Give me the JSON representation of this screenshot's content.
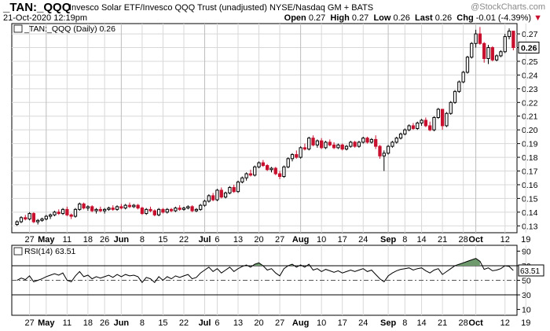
{
  "header": {
    "symbol": "_TAN:_QQQ",
    "title": "Invesco Solar ETF/Invesco QQQ Trust (unadjusted)",
    "exchange": "NYSE/Nasdaq GM + BATS",
    "watermark": "@StockCharts.com",
    "date": "21-Oct-2020 12:19pm",
    "open_label": "Open",
    "open": "0.27",
    "high_label": "High",
    "high": "0.27",
    "low_label": "Low",
    "low": "0.26",
    "last_label": "Last",
    "last": "0.26",
    "chg_label": "Chg",
    "chg": "-0.01 (-4.39%)",
    "chg_arrow": "▼"
  },
  "colors": {
    "up": "#000000",
    "down": "#c8102e",
    "rsi_fill": "#6e9a6e",
    "grid": "#d8d8d8"
  },
  "chart_data": [
    {
      "type": "candlestick",
      "legend": "_TAN:_QQQ (Daily) 0.26",
      "last_value_label": "0.26",
      "y_ticks": [
        "0.27",
        "0.26",
        "0.25",
        "0.24",
        "0.23",
        "0.22",
        "0.21",
        "0.20",
        "0.19",
        "0.18",
        "0.17",
        "0.16",
        "0.15",
        "0.14",
        "0.13"
      ],
      "ylim": [
        0.125,
        0.2775
      ],
      "x_labels": [
        {
          "label": "27",
          "i": 3
        },
        {
          "label": "May",
          "i": 7,
          "bold": true
        },
        {
          "label": "11",
          "i": 12
        },
        {
          "label": "18",
          "i": 17
        },
        {
          "label": "26",
          "i": 21
        },
        {
          "label": "Jun",
          "i": 25,
          "bold": true
        },
        {
          "label": "8",
          "i": 30
        },
        {
          "label": "15",
          "i": 35
        },
        {
          "label": "22",
          "i": 40
        },
        {
          "label": "Jul",
          "i": 45,
          "bold": true
        },
        {
          "label": "6",
          "i": 48
        },
        {
          "label": "13",
          "i": 53
        },
        {
          "label": "20",
          "i": 58
        },
        {
          "label": "27",
          "i": 63
        },
        {
          "label": "Aug",
          "i": 68,
          "bold": true
        },
        {
          "label": "10",
          "i": 73
        },
        {
          "label": "17",
          "i": 78
        },
        {
          "label": "24",
          "i": 83
        },
        {
          "label": "Sep",
          "i": 89,
          "bold": true
        },
        {
          "label": "8",
          "i": 93
        },
        {
          "label": "14",
          "i": 97
        },
        {
          "label": "21",
          "i": 102
        },
        {
          "label": "28",
          "i": 107
        },
        {
          "label": "Oct",
          "i": 110,
          "bold": true
        },
        {
          "label": "12",
          "i": 117
        },
        {
          "label": "19",
          "i": 122
        }
      ],
      "ohlc": [
        [
          0.131,
          0.134,
          0.13,
          0.133
        ],
        [
          0.133,
          0.137,
          0.132,
          0.136
        ],
        [
          0.136,
          0.138,
          0.134,
          0.135
        ],
        [
          0.135,
          0.14,
          0.134,
          0.139
        ],
        [
          0.139,
          0.14,
          0.132,
          0.133
        ],
        [
          0.133,
          0.135,
          0.131,
          0.134
        ],
        [
          0.134,
          0.136,
          0.133,
          0.135
        ],
        [
          0.135,
          0.138,
          0.134,
          0.137
        ],
        [
          0.137,
          0.139,
          0.135,
          0.138
        ],
        [
          0.138,
          0.141,
          0.137,
          0.14
        ],
        [
          0.14,
          0.142,
          0.138,
          0.139
        ],
        [
          0.139,
          0.143,
          0.138,
          0.142
        ],
        [
          0.142,
          0.144,
          0.137,
          0.138
        ],
        [
          0.138,
          0.139,
          0.135,
          0.137
        ],
        [
          0.137,
          0.143,
          0.136,
          0.142
        ],
        [
          0.142,
          0.147,
          0.141,
          0.146
        ],
        [
          0.146,
          0.147,
          0.142,
          0.143
        ],
        [
          0.143,
          0.145,
          0.141,
          0.144
        ],
        [
          0.144,
          0.145,
          0.14,
          0.141
        ],
        [
          0.141,
          0.143,
          0.139,
          0.142
        ],
        [
          0.142,
          0.144,
          0.14,
          0.141
        ],
        [
          0.141,
          0.143,
          0.139,
          0.142
        ],
        [
          0.142,
          0.144,
          0.141,
          0.143
        ],
        [
          0.143,
          0.145,
          0.141,
          0.142
        ],
        [
          0.142,
          0.145,
          0.141,
          0.144
        ],
        [
          0.144,
          0.146,
          0.142,
          0.143
        ],
        [
          0.143,
          0.146,
          0.142,
          0.145
        ],
        [
          0.145,
          0.147,
          0.143,
          0.144
        ],
        [
          0.144,
          0.146,
          0.143,
          0.145
        ],
        [
          0.145,
          0.146,
          0.142,
          0.143
        ],
        [
          0.143,
          0.144,
          0.138,
          0.139
        ],
        [
          0.139,
          0.143,
          0.138,
          0.142
        ],
        [
          0.142,
          0.144,
          0.14,
          0.141
        ],
        [
          0.141,
          0.142,
          0.137,
          0.138
        ],
        [
          0.138,
          0.143,
          0.137,
          0.142
        ],
        [
          0.142,
          0.143,
          0.139,
          0.14
        ],
        [
          0.14,
          0.143,
          0.139,
          0.142
        ],
        [
          0.142,
          0.143,
          0.14,
          0.141
        ],
        [
          0.141,
          0.144,
          0.14,
          0.143
        ],
        [
          0.143,
          0.145,
          0.141,
          0.142
        ],
        [
          0.142,
          0.144,
          0.141,
          0.143
        ],
        [
          0.143,
          0.145,
          0.142,
          0.144
        ],
        [
          0.144,
          0.145,
          0.14,
          0.141
        ],
        [
          0.141,
          0.143,
          0.14,
          0.142
        ],
        [
          0.142,
          0.146,
          0.141,
          0.145
        ],
        [
          0.145,
          0.149,
          0.144,
          0.148
        ],
        [
          0.148,
          0.153,
          0.147,
          0.152
        ],
        [
          0.152,
          0.154,
          0.148,
          0.149
        ],
        [
          0.149,
          0.157,
          0.148,
          0.156
        ],
        [
          0.156,
          0.158,
          0.15,
          0.151
        ],
        [
          0.151,
          0.155,
          0.15,
          0.154
        ],
        [
          0.154,
          0.159,
          0.153,
          0.158
        ],
        [
          0.158,
          0.16,
          0.154,
          0.155
        ],
        [
          0.155,
          0.163,
          0.154,
          0.162
        ],
        [
          0.162,
          0.166,
          0.161,
          0.165
        ],
        [
          0.165,
          0.169,
          0.163,
          0.168
        ],
        [
          0.168,
          0.171,
          0.166,
          0.167
        ],
        [
          0.167,
          0.174,
          0.166,
          0.173
        ],
        [
          0.173,
          0.177,
          0.172,
          0.176
        ],
        [
          0.176,
          0.178,
          0.173,
          0.174
        ],
        [
          0.174,
          0.175,
          0.17,
          0.171
        ],
        [
          0.171,
          0.173,
          0.169,
          0.172
        ],
        [
          0.172,
          0.173,
          0.167,
          0.168
        ],
        [
          0.168,
          0.17,
          0.164,
          0.166
        ],
        [
          0.166,
          0.174,
          0.165,
          0.173
        ],
        [
          0.173,
          0.18,
          0.172,
          0.179
        ],
        [
          0.179,
          0.183,
          0.177,
          0.182
        ],
        [
          0.182,
          0.185,
          0.179,
          0.18
        ],
        [
          0.18,
          0.188,
          0.179,
          0.187
        ],
        [
          0.187,
          0.19,
          0.185,
          0.186
        ],
        [
          0.186,
          0.195,
          0.185,
          0.194
        ],
        [
          0.194,
          0.196,
          0.188,
          0.189
        ],
        [
          0.189,
          0.193,
          0.187,
          0.192
        ],
        [
          0.192,
          0.194,
          0.186,
          0.187
        ],
        [
          0.187,
          0.192,
          0.186,
          0.191
        ],
        [
          0.191,
          0.193,
          0.188,
          0.189
        ],
        [
          0.189,
          0.191,
          0.186,
          0.187
        ],
        [
          0.187,
          0.19,
          0.186,
          0.189
        ],
        [
          0.189,
          0.19,
          0.185,
          0.186
        ],
        [
          0.186,
          0.189,
          0.185,
          0.188
        ],
        [
          0.188,
          0.192,
          0.187,
          0.191
        ],
        [
          0.191,
          0.192,
          0.187,
          0.188
        ],
        [
          0.188,
          0.192,
          0.187,
          0.191
        ],
        [
          0.191,
          0.195,
          0.19,
          0.194
        ],
        [
          0.194,
          0.195,
          0.19,
          0.191
        ],
        [
          0.191,
          0.194,
          0.19,
          0.193
        ],
        [
          0.193,
          0.196,
          0.186,
          0.188
        ],
        [
          0.188,
          0.189,
          0.179,
          0.181
        ],
        [
          0.181,
          0.185,
          0.17,
          0.183
        ],
        [
          0.183,
          0.189,
          0.182,
          0.188
        ],
        [
          0.188,
          0.192,
          0.187,
          0.191
        ],
        [
          0.191,
          0.195,
          0.19,
          0.194
        ],
        [
          0.194,
          0.198,
          0.193,
          0.197
        ],
        [
          0.197,
          0.201,
          0.196,
          0.2
        ],
        [
          0.2,
          0.204,
          0.199,
          0.203
        ],
        [
          0.203,
          0.205,
          0.2,
          0.201
        ],
        [
          0.201,
          0.206,
          0.2,
          0.205
        ],
        [
          0.205,
          0.208,
          0.203,
          0.207
        ],
        [
          0.207,
          0.209,
          0.202,
          0.203
        ],
        [
          0.203,
          0.206,
          0.199,
          0.2
        ],
        [
          0.2,
          0.21,
          0.199,
          0.209
        ],
        [
          0.209,
          0.216,
          0.208,
          0.215
        ],
        [
          0.215,
          0.215,
          0.2,
          0.203
        ],
        [
          0.203,
          0.213,
          0.202,
          0.212
        ],
        [
          0.212,
          0.221,
          0.211,
          0.22
        ],
        [
          0.22,
          0.229,
          0.219,
          0.228
        ],
        [
          0.228,
          0.236,
          0.227,
          0.235
        ],
        [
          0.235,
          0.243,
          0.234,
          0.242
        ],
        [
          0.242,
          0.254,
          0.241,
          0.253
        ],
        [
          0.253,
          0.264,
          0.252,
          0.263
        ],
        [
          0.263,
          0.273,
          0.26,
          0.27
        ],
        [
          0.27,
          0.275,
          0.262,
          0.263
        ],
        [
          0.263,
          0.264,
          0.249,
          0.252
        ],
        [
          0.252,
          0.262,
          0.248,
          0.26
        ],
        [
          0.26,
          0.261,
          0.25,
          0.251
        ],
        [
          0.251,
          0.255,
          0.25,
          0.254
        ],
        [
          0.254,
          0.258,
          0.253,
          0.257
        ],
        [
          0.257,
          0.27,
          0.256,
          0.268
        ],
        [
          0.268,
          0.274,
          0.266,
          0.272
        ],
        [
          0.272,
          0.272,
          0.258,
          0.26
        ]
      ]
    },
    {
      "type": "line",
      "legend": "RSI(14) 63.51",
      "last_value_label": "63.51",
      "y_ticks": [
        "90",
        "70",
        "50",
        "30",
        "10"
      ],
      "ylim": [
        2,
        98
      ],
      "overbought": 70,
      "midline": 50,
      "oversold": 30,
      "values": [
        50,
        53,
        51,
        56,
        48,
        50,
        52,
        55,
        57,
        59,
        57,
        60,
        50,
        48,
        56,
        62,
        55,
        57,
        52,
        55,
        53,
        55,
        57,
        54,
        58,
        55,
        58,
        56,
        57,
        55,
        47,
        54,
        52,
        47,
        55,
        50,
        55,
        52,
        56,
        54,
        56,
        58,
        52,
        54,
        60,
        64,
        68,
        62,
        66,
        60,
        64,
        68,
        62,
        66,
        69,
        71,
        68,
        72,
        74,
        70,
        64,
        66,
        60,
        56,
        66,
        70,
        72,
        68,
        71,
        68,
        72,
        64,
        66,
        62,
        65,
        63,
        61,
        63,
        60,
        62,
        64,
        62,
        64,
        66,
        62,
        64,
        58,
        52,
        48,
        56,
        60,
        63,
        65,
        66,
        67,
        64,
        66,
        67,
        63,
        60,
        64,
        66,
        58,
        62,
        66,
        70,
        72,
        74,
        76,
        78,
        80,
        76,
        65,
        67,
        63,
        64,
        66,
        70,
        69,
        63.51
      ]
    }
  ]
}
